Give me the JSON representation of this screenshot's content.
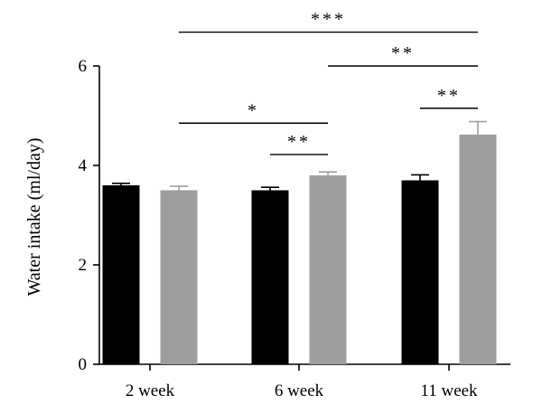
{
  "chart_data": {
    "type": "bar",
    "title": "",
    "xlabel": "",
    "ylabel": "Water intake (ml/day)",
    "ylim": [
      0,
      6
    ],
    "yticks": [
      "0",
      "2",
      "4",
      "6"
    ],
    "grid": false,
    "legend": "none",
    "categories": [
      "2 week",
      "6 week",
      "11 week"
    ],
    "series": [
      {
        "color": "#000000",
        "values": [
          3.6,
          3.5,
          3.7
        ],
        "errors": [
          0.04,
          0.06,
          0.11
        ]
      },
      {
        "color": "#9e9e9e",
        "values": [
          3.5,
          3.8,
          4.62
        ],
        "errors": [
          0.08,
          0.07,
          0.26
        ]
      }
    ],
    "significance": [
      {
        "from": [
          0,
          1
        ],
        "to": [
          2,
          1
        ],
        "y": 6.68,
        "label": "***"
      },
      {
        "from": [
          1,
          1
        ],
        "to": [
          2,
          1
        ],
        "y": 6.0,
        "label": "**"
      },
      {
        "from": [
          0,
          1
        ],
        "to": [
          1,
          1
        ],
        "y": 4.85,
        "label": "*"
      },
      {
        "from": [
          1,
          0
        ],
        "to": [
          1,
          1
        ],
        "y": 4.22,
        "label": "**"
      },
      {
        "from": [
          2,
          0
        ],
        "to": [
          2,
          1
        ],
        "y": 5.15,
        "label": "**"
      }
    ]
  }
}
